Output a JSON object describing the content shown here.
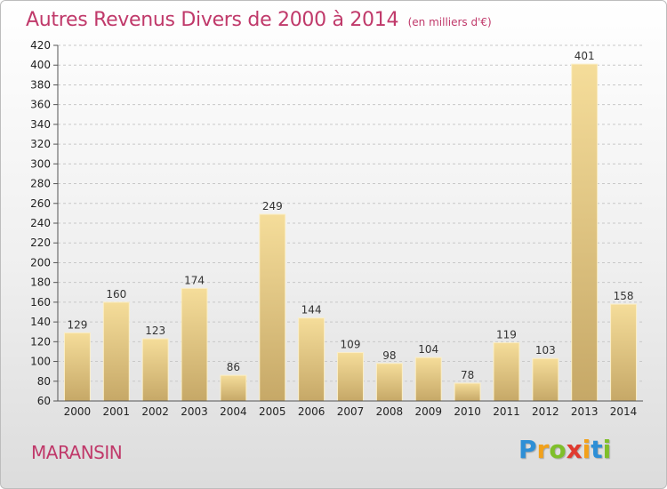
{
  "chart_data": {
    "type": "bar",
    "title": "Autres Revenus Divers de 2000 à 2014",
    "unit": "(en milliers d'€)",
    "categories": [
      "2000",
      "2001",
      "2002",
      "2003",
      "2004",
      "2005",
      "2006",
      "2007",
      "2008",
      "2009",
      "2010",
      "2011",
      "2012",
      "2013",
      "2014"
    ],
    "values": [
      129,
      160,
      123,
      174,
      86,
      249,
      144,
      109,
      98,
      104,
      78,
      119,
      103,
      401,
      158
    ],
    "ylim": [
      60,
      420
    ],
    "ytick_step": 20,
    "grid": true,
    "bar_color_top": "#f5dd9a",
    "bar_color_bottom": "#c6a867"
  },
  "commune": "MARANSIN",
  "brand": {
    "letters": [
      "P",
      "r",
      "o",
      "x",
      "i",
      "t",
      "i"
    ],
    "colors": [
      "#2e8fd6",
      "#f2a11a",
      "#7fbf2a",
      "#e03a2f",
      "#f2a11a",
      "#2e8fd6",
      "#7fbf2a"
    ]
  }
}
